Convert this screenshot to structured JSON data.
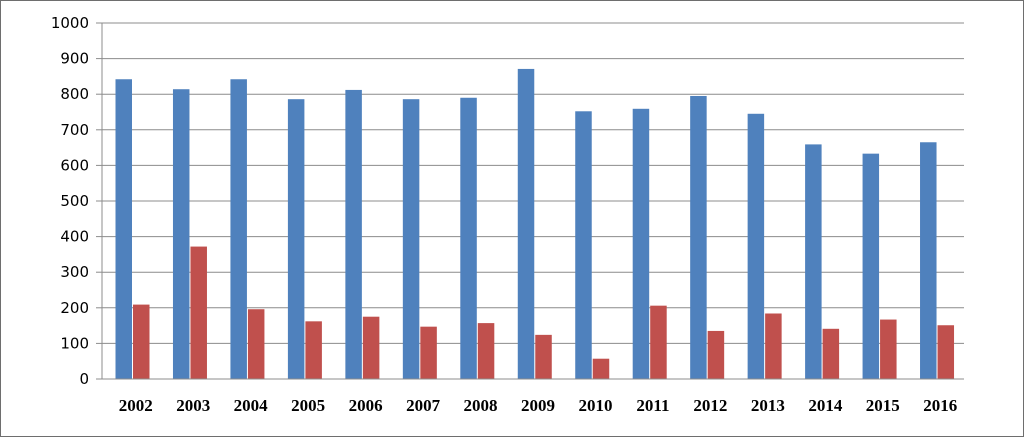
{
  "chart_data": {
    "type": "bar",
    "categories": [
      "2002",
      "2003",
      "2004",
      "2005",
      "2006",
      "2007",
      "2008",
      "2009",
      "2010",
      "2011",
      "2012",
      "2013",
      "2014",
      "2015",
      "2016"
    ],
    "series": [
      {
        "values": [
          842,
          814,
          842,
          786,
          812,
          786,
          790,
          871,
          752,
          759,
          795,
          745,
          659,
          633,
          665
        ],
        "color": "#4f81bd"
      },
      {
        "values": [
          209,
          372,
          196,
          162,
          175,
          147,
          157,
          124,
          57,
          206,
          135,
          184,
          141,
          167,
          151
        ],
        "color": "#c0504d"
      }
    ],
    "title": "",
    "xlabel": "",
    "ylabel": "",
    "ylim": [
      0,
      1000
    ],
    "yticks": [
      0,
      100,
      200,
      300,
      400,
      500,
      600,
      700,
      800,
      900,
      1000
    ],
    "grid": true,
    "legend": "none"
  }
}
